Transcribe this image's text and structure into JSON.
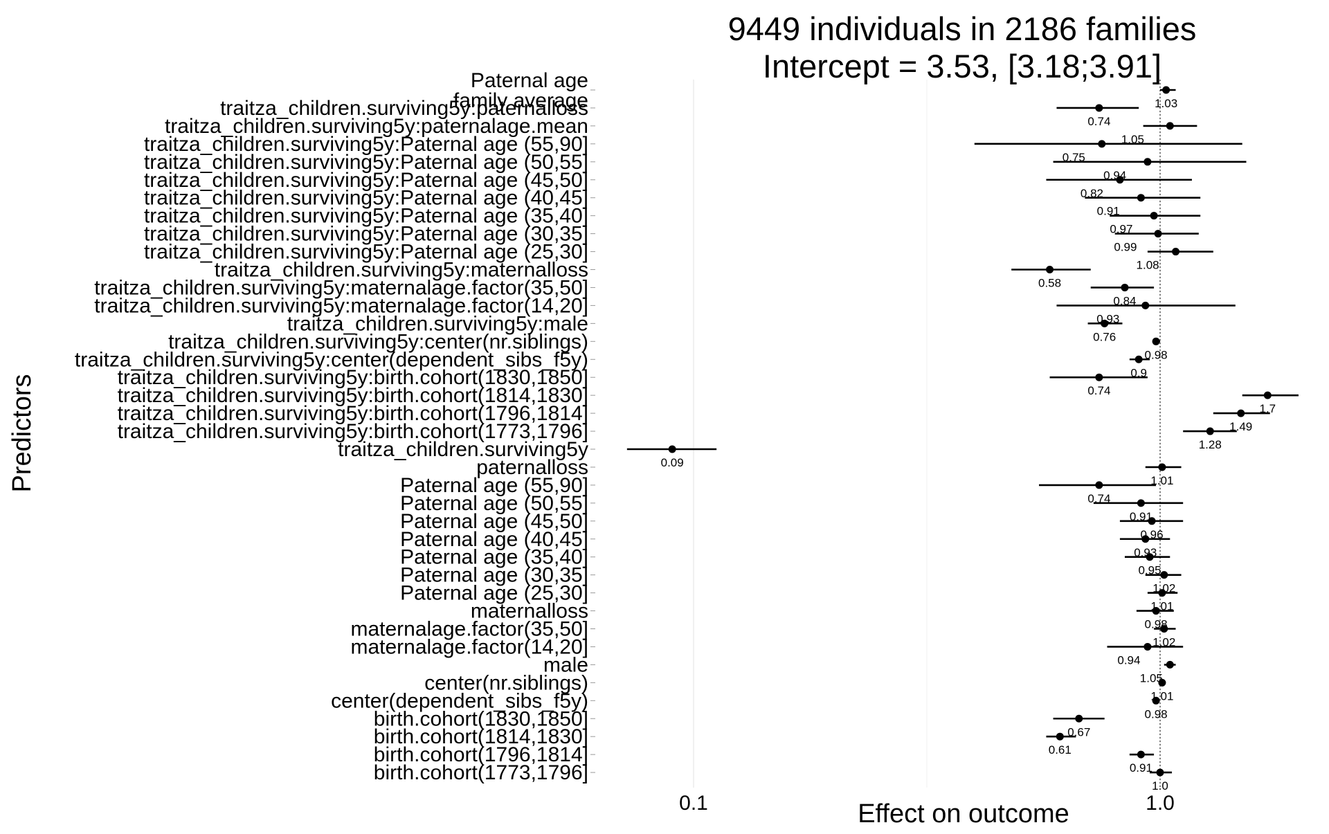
{
  "chart_data": {
    "type": "forest",
    "title_line1": "9449 individuals in 2186 families",
    "title_line2": "Intercept = 3.53, [3.18;3.91]",
    "xlabel": "Effect on outcome",
    "ylabel": "Predictors",
    "x_scale": "log",
    "xlim": [
      0.07,
      2.3
    ],
    "x_ticks": [
      {
        "value": 0.1,
        "label": "0.1"
      },
      {
        "value": 1.0,
        "label": "1.0"
      }
    ],
    "minor_gridlines": [
      0.3162,
      3.162
    ],
    "reference_line": 1.0,
    "rows": [
      {
        "label": "Paternal age",
        "label2": "family average",
        "est": 1.03,
        "lo": 1.0,
        "hi": 1.08,
        "text": "1.03",
        "lx": 0,
        "ly": 1
      },
      {
        "label": "traitza_children.surviving5y:paternalloss",
        "est": 0.74,
        "lo": 0.6,
        "hi": 0.9,
        "text": "0.74",
        "lx": 0,
        "ly": 1
      },
      {
        "label": "traitza_children.surviving5y:paternalage.mean",
        "est": 1.05,
        "lo": 0.92,
        "hi": 1.2,
        "text": "1.05",
        "lx": -0.08,
        "ly": 1
      },
      {
        "label": "traitza_children.surviving5y:Paternal age (55,90]",
        "est": 0.75,
        "lo": 0.4,
        "hi": 1.5,
        "text": "0.75",
        "lx": -0.06,
        "ly": 1
      },
      {
        "label": "traitza_children.surviving5y:Paternal age (50,55]",
        "est": 0.94,
        "lo": 0.59,
        "hi": 1.53,
        "text": "0.94",
        "lx": -0.07,
        "ly": 1
      },
      {
        "label": "traitza_children.surviving5y:Paternal age (45,50]",
        "est": 0.82,
        "lo": 0.57,
        "hi": 1.17,
        "text": "0.82",
        "lx": -0.06,
        "ly": 1
      },
      {
        "label": "traitza_children.surviving5y:Paternal age (40,45]",
        "est": 0.91,
        "lo": 0.69,
        "hi": 1.22,
        "text": "0.91",
        "lx": -0.07,
        "ly": 1
      },
      {
        "label": "traitza_children.surviving5y:Paternal age (35,40]",
        "est": 0.97,
        "lo": 0.78,
        "hi": 1.22,
        "text": "0.97",
        "lx": -0.07,
        "ly": 1
      },
      {
        "label": "traitza_children.surviving5y:Paternal age (30,35]",
        "est": 0.99,
        "lo": 0.8,
        "hi": 1.21,
        "text": "0.99",
        "lx": -0.07,
        "ly": 1
      },
      {
        "label": "traitza_children.surviving5y:Paternal age (25,30]",
        "est": 1.08,
        "lo": 0.94,
        "hi": 1.3,
        "text": "1.08",
        "lx": -0.06,
        "ly": 1
      },
      {
        "label": "traitza_children.surviving5y:maternalloss",
        "est": 0.58,
        "lo": 0.48,
        "hi": 0.71,
        "text": "0.58",
        "lx": 0,
        "ly": 1
      },
      {
        "label": "traitza_children.surviving5y:maternalage.factor(35,50]",
        "est": 0.84,
        "lo": 0.71,
        "hi": 0.97,
        "text": "0.84",
        "lx": 0,
        "ly": 1
      },
      {
        "label": "traitza_children.surviving5y:maternalage.factor(14,20]",
        "est": 0.93,
        "lo": 0.6,
        "hi": 1.45,
        "text": "0.93",
        "lx": -0.08,
        "ly": 1
      },
      {
        "label": "traitza_children.surviving5y:male",
        "est": 0.76,
        "lo": 0.7,
        "hi": 0.83,
        "text": "0.76",
        "lx": 0,
        "ly": 1
      },
      {
        "label": "traitza_children.surviving5y:center(nr.siblings)",
        "est": 0.98,
        "lo": 0.97,
        "hi": 1.0,
        "text": "0.98",
        "lx": 0,
        "ly": 1
      },
      {
        "label": "traitza_children.surviving5y:center(dependent_sibs_f5y)",
        "est": 0.9,
        "lo": 0.86,
        "hi": 0.95,
        "text": "0.9",
        "lx": 0,
        "ly": 1
      },
      {
        "label": "traitza_children.surviving5y:birth.cohort(1830,1850]",
        "est": 0.74,
        "lo": 0.58,
        "hi": 0.94,
        "text": "0.74",
        "lx": 0,
        "ly": 1
      },
      {
        "label": "traitza_children.surviving5y:birth.cohort(1814,1830]",
        "est": 1.7,
        "lo": 1.5,
        "hi": 1.98,
        "text": "1.7",
        "lx": 0,
        "ly": 1
      },
      {
        "label": "traitza_children.surviving5y:birth.cohort(1796,1814]",
        "est": 1.49,
        "lo": 1.3,
        "hi": 1.72,
        "text": "1.49",
        "lx": 0,
        "ly": 1
      },
      {
        "label": "traitza_children.surviving5y:birth.cohort(1773,1796]",
        "est": 1.28,
        "lo": 1.12,
        "hi": 1.46,
        "text": "1.28",
        "lx": 0,
        "ly": 1
      },
      {
        "label": "traitza_children.surviving5y",
        "est": 0.09,
        "lo": 0.072,
        "hi": 0.112,
        "text": "0.09",
        "lx": 0,
        "ly": 1
      },
      {
        "label": "paternalloss",
        "est": 1.01,
        "lo": 0.93,
        "hi": 1.11,
        "text": "1.01",
        "lx": 0,
        "ly": 1
      },
      {
        "label": "Paternal age (55,90]",
        "est": 0.74,
        "lo": 0.55,
        "hi": 0.98,
        "text": "0.74",
        "lx": 0,
        "ly": 1
      },
      {
        "label": "Paternal age (50,55]",
        "est": 0.91,
        "lo": 0.72,
        "hi": 1.12,
        "text": "0.91",
        "lx": 0,
        "ly": 1
      },
      {
        "label": "Paternal age (45,50]",
        "est": 0.96,
        "lo": 0.82,
        "hi": 1.12,
        "text": "0.96",
        "lx": 0,
        "ly": 1
      },
      {
        "label": "Paternal age (40,45]",
        "est": 0.93,
        "lo": 0.82,
        "hi": 1.05,
        "text": "0.93",
        "lx": 0,
        "ly": 1
      },
      {
        "label": "Paternal age (35,40]",
        "est": 0.95,
        "lo": 0.84,
        "hi": 1.05,
        "text": "0.95",
        "lx": 0,
        "ly": 1
      },
      {
        "label": "Paternal age (30,35]",
        "est": 1.02,
        "lo": 0.93,
        "hi": 1.11,
        "text": "1.02",
        "lx": 0,
        "ly": 1
      },
      {
        "label": "Paternal age (25,30]",
        "est": 1.01,
        "lo": 0.94,
        "hi": 1.09,
        "text": "1.01",
        "lx": 0,
        "ly": 1
      },
      {
        "label": "maternalloss",
        "est": 0.98,
        "lo": 0.89,
        "hi": 1.07,
        "text": "0.98",
        "lx": 0,
        "ly": 1
      },
      {
        "label": "maternalage.factor(35,50]",
        "est": 1.02,
        "lo": 0.97,
        "hi": 1.08,
        "text": "1.02",
        "lx": 0,
        "ly": 1
      },
      {
        "label": "maternalage.factor(14,20]",
        "est": 0.94,
        "lo": 0.77,
        "hi": 1.12,
        "text": "0.94",
        "lx": -0.04,
        "ly": 1
      },
      {
        "label": "male",
        "est": 1.05,
        "lo": 1.02,
        "hi": 1.08,
        "text": "1.05",
        "lx": -0.04,
        "ly": 1
      },
      {
        "label": "center(nr.siblings)",
        "est": 1.01,
        "lo": 1.0,
        "hi": 1.02,
        "text": "1.01",
        "lx": 0,
        "ly": 1
      },
      {
        "label": "center(dependent_sibs_f5y)",
        "est": 0.98,
        "lo": 0.97,
        "hi": 0.99,
        "text": "0.98",
        "lx": 0,
        "ly": 1
      },
      {
        "label": "birth.cohort(1830,1850]",
        "est": 0.67,
        "lo": 0.59,
        "hi": 0.76,
        "text": "0.67",
        "lx": 0,
        "ly": 1
      },
      {
        "label": "birth.cohort(1814,1830]",
        "est": 0.61,
        "lo": 0.57,
        "hi": 0.66,
        "text": "0.61",
        "lx": 0,
        "ly": 1
      },
      {
        "label": "birth.cohort(1796,1814]",
        "est": 0.91,
        "lo": 0.86,
        "hi": 0.97,
        "text": "0.91",
        "lx": 0,
        "ly": 1
      },
      {
        "label": "birth.cohort(1773,1796]",
        "est": 1.0,
        "lo": 0.95,
        "hi": 1.06,
        "text": "1.0",
        "lx": 0,
        "ly": 1
      }
    ]
  }
}
